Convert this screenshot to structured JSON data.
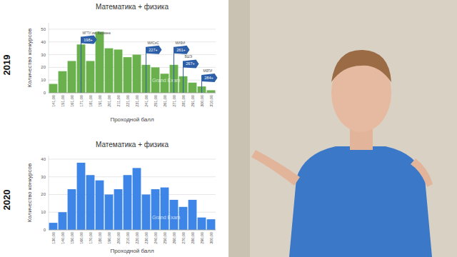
{
  "chart_data": [
    {
      "type": "bar",
      "title": "Математика + физика",
      "subtitle": "2019",
      "x_label": "Проходной балл",
      "y_label": "Количество конкурсов",
      "categories": [
        "141,00",
        "151,00",
        "161,00",
        "171,00",
        "181,00",
        "191,00",
        "201,00",
        "211,00",
        "221,00",
        "231,00",
        "241,00",
        "251,00",
        "261,00",
        "271,00",
        "281,00",
        "291,00",
        "300,00",
        "310,00"
      ],
      "values": [
        7,
        17,
        25,
        38,
        25,
        48,
        35,
        34,
        28,
        30,
        22,
        20,
        15,
        22,
        13,
        8,
        5,
        2
      ],
      "color": "#6ab04c",
      "ylim": [
        0,
        55
      ],
      "yticks": [
        0,
        10,
        20,
        30,
        40,
        50
      ],
      "grid": true,
      "watermark": "Grand Exam",
      "annotations": [
        {
          "label": "МГТУ им. Баумана",
          "text": "198+",
          "at": "171,00",
          "y": 44
        },
        {
          "label": "МИСиС",
          "text": "227+",
          "at": "241,00",
          "y": 36
        },
        {
          "label": "МИФИ",
          "text": "261+",
          "at": "271,00",
          "y": 36
        },
        {
          "label": "ВШЭ",
          "text": "267+",
          "at": "281,00",
          "y": 25
        },
        {
          "label": "МФТИ",
          "text": "284+",
          "at": "300,00",
          "y": 14
        }
      ]
    },
    {
      "type": "bar",
      "title": "Математика + физика",
      "subtitle": "2020",
      "x_label": "Проходной балл",
      "y_label": "Количество конкурсов",
      "categories": [
        "130,00",
        "140,00",
        "150,00",
        "160,00",
        "170,00",
        "180,00",
        "190,00",
        "200,00",
        "210,00",
        "220,00",
        "230,00",
        "240,00",
        "250,00",
        "260,00",
        "270,00",
        "280,00",
        "290,00",
        "300,00"
      ],
      "values": [
        4,
        10,
        23,
        38,
        31,
        28,
        20,
        23,
        31,
        35,
        20,
        23,
        24,
        17,
        13,
        17,
        7,
        6
      ],
      "color": "#3d85e6",
      "ylim": [
        0,
        42
      ],
      "yticks": [
        0,
        10,
        20,
        30,
        40
      ],
      "grid": true,
      "watermark": "Grand Exam"
    }
  ]
}
